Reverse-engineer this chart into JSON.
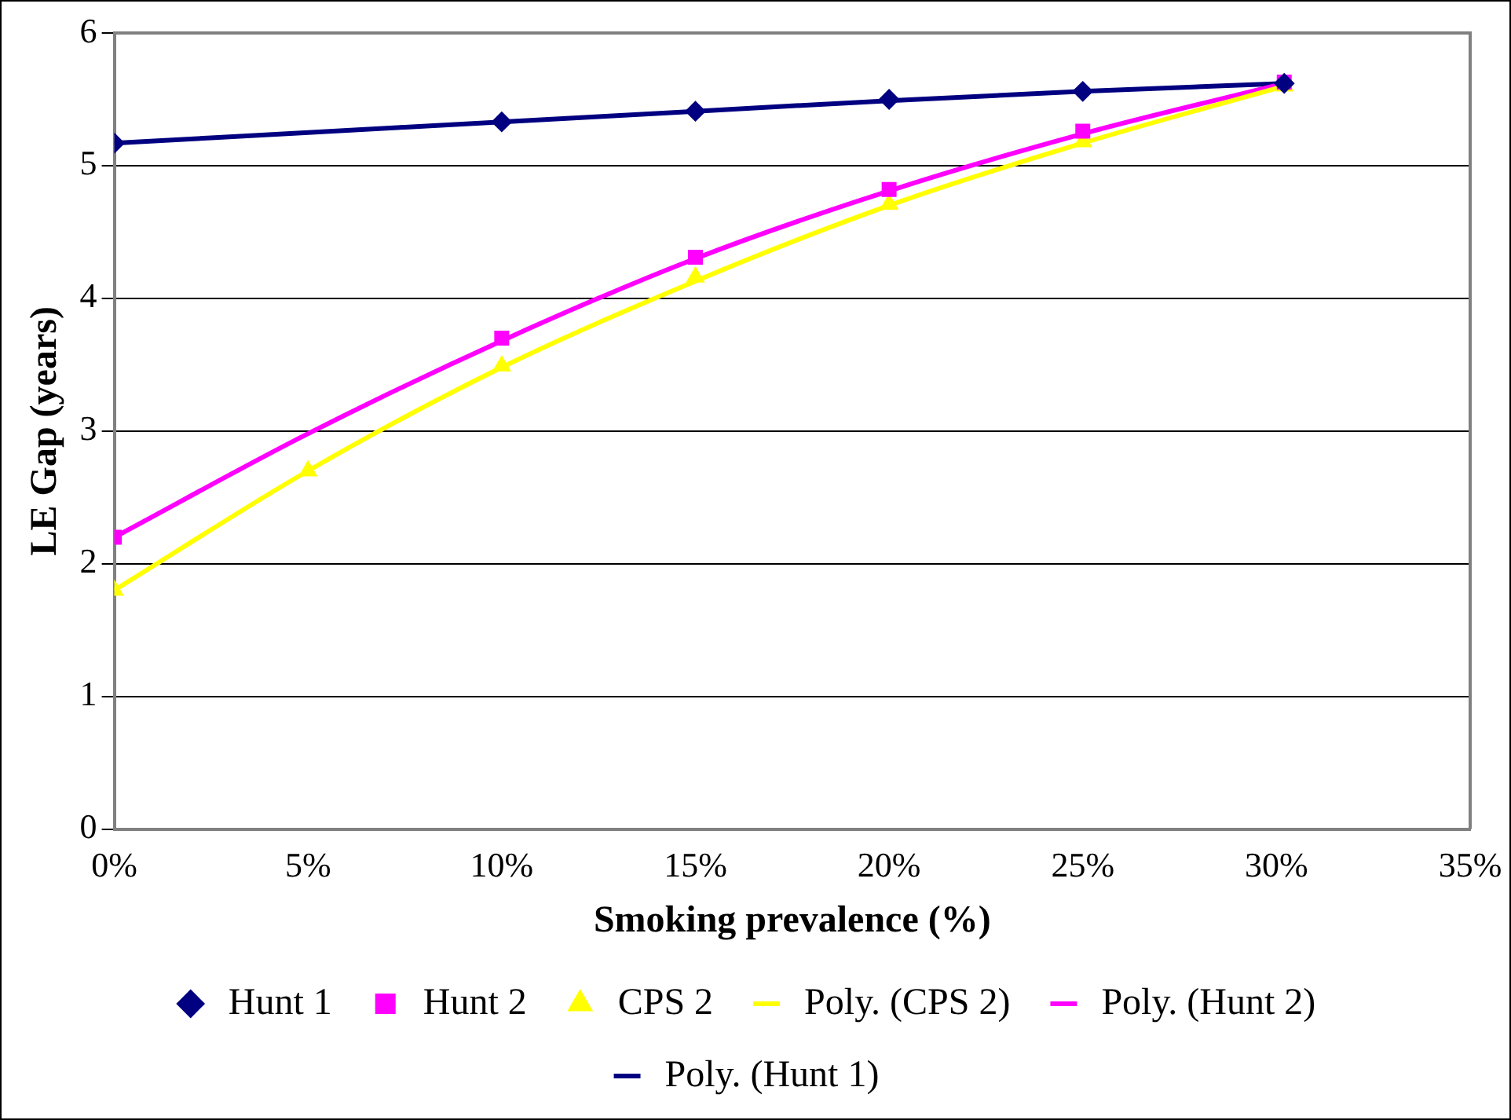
{
  "chart_data": {
    "type": "line",
    "xlabel": "Smoking prevalence (%)",
    "ylabel": "LE Gap (years)",
    "xlim": [
      0,
      35
    ],
    "xticks": [
      {
        "value": 0,
        "label": "0%"
      },
      {
        "value": 5,
        "label": "5%"
      },
      {
        "value": 10,
        "label": "10%"
      },
      {
        "value": 15,
        "label": "15%"
      },
      {
        "value": 20,
        "label": "20%"
      },
      {
        "value": 25,
        "label": "25%"
      },
      {
        "value": 30,
        "label": "30%"
      },
      {
        "value": 35,
        "label": "35%"
      }
    ],
    "ylim": [
      0,
      6
    ],
    "yticks": [
      0,
      1,
      2,
      3,
      4,
      5,
      6
    ],
    "grid": "y",
    "legend": "bottom",
    "series": [
      {
        "name": "Hunt 1",
        "type": "scatter",
        "marker": "diamond",
        "color": "#000080",
        "x": [
          0,
          10,
          15,
          20,
          25,
          30.2
        ],
        "values": [
          5.17,
          5.33,
          5.41,
          5.5,
          5.56,
          5.62
        ]
      },
      {
        "name": "Hunt 2",
        "type": "scatter",
        "marker": "square",
        "color": "#ff00ff",
        "x": [
          0,
          10,
          15,
          20,
          25,
          30.2
        ],
        "values": [
          2.2,
          3.7,
          4.31,
          4.82,
          5.26,
          5.63
        ]
      },
      {
        "name": "CPS 2",
        "type": "scatter",
        "marker": "triangle",
        "color": "#ffff00",
        "x": [
          0,
          5,
          10,
          15,
          20,
          25,
          30.2
        ],
        "values": [
          1.8,
          2.7,
          3.49,
          4.16,
          4.71,
          5.18,
          5.6
        ]
      },
      {
        "name": "Poly. (CPS 2)",
        "marker": "none",
        "color": "#ffff00",
        "x": [
          0,
          5,
          10,
          15,
          20,
          25,
          30.2
        ],
        "values": [
          1.8,
          2.7,
          3.48,
          4.13,
          4.7,
          5.17,
          5.6
        ]
      },
      {
        "name": "Poly. (Hunt 2)",
        "marker": "none",
        "color": "#ff00ff",
        "x": [
          0,
          5,
          10,
          15,
          20,
          25,
          30.2
        ],
        "values": [
          2.2,
          2.98,
          3.68,
          4.3,
          4.81,
          5.24,
          5.62
        ]
      },
      {
        "name": "Poly. (Hunt 1)",
        "marker": "none",
        "color": "#000080",
        "x": [
          0,
          5,
          10,
          15,
          20,
          25,
          30.2
        ],
        "values": [
          5.17,
          5.25,
          5.33,
          5.41,
          5.49,
          5.56,
          5.62
        ]
      }
    ]
  }
}
